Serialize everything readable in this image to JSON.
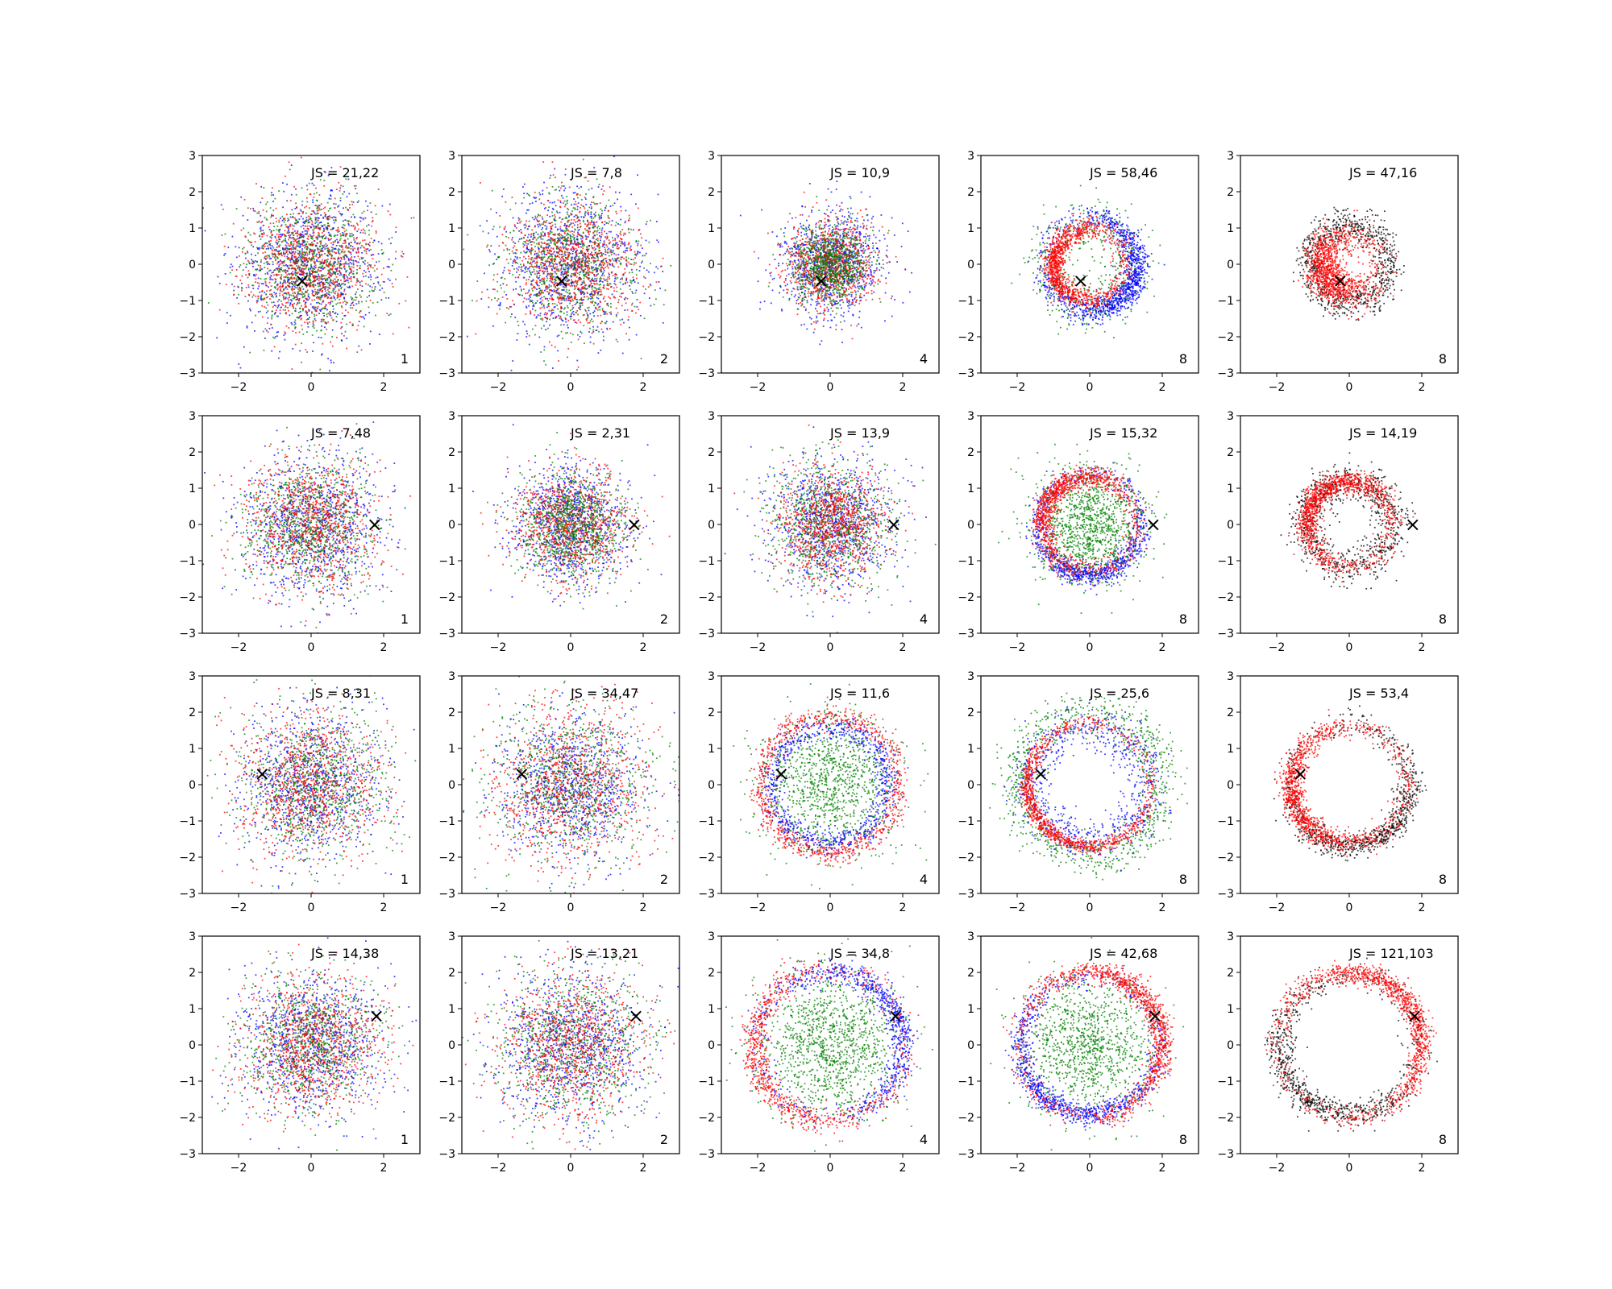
{
  "figure": {
    "rows": 4,
    "cols": 5,
    "xlim": [
      -3,
      3
    ],
    "ylim": [
      -3,
      3
    ],
    "xticks": [
      -2,
      0,
      2
    ],
    "yticks": [
      -3,
      -2,
      -1,
      0,
      1,
      2,
      3
    ],
    "marker_symbol": "×",
    "colors": {
      "blue": "#0000ff",
      "green": "#008000",
      "red": "#ff0000",
      "black": "#000000",
      "axes": "#000000",
      "background": "#ffffff"
    }
  },
  "chart_data": [
    {
      "type": "scatter",
      "row": 0,
      "col": 0,
      "annotation": "JS = 21,22",
      "corner_label": "1",
      "marker": [
        -0.25,
        -0.45
      ],
      "pattern": "blob",
      "series": [
        {
          "color": "blue",
          "spread": 1.05,
          "weight": 1
        },
        {
          "color": "green",
          "spread": 0.95,
          "weight": 1
        },
        {
          "color": "red",
          "spread": 0.95,
          "weight": 1
        }
      ]
    },
    {
      "type": "scatter",
      "row": 0,
      "col": 1,
      "annotation": "JS = 7,8",
      "corner_label": "2",
      "marker": [
        -0.25,
        -0.45
      ],
      "pattern": "blob",
      "series": [
        {
          "color": "blue",
          "spread": 1.05,
          "weight": 1
        },
        {
          "color": "green",
          "spread": 1.0,
          "weight": 1
        },
        {
          "color": "red",
          "spread": 0.95,
          "weight": 1
        }
      ]
    },
    {
      "type": "scatter",
      "row": 0,
      "col": 2,
      "annotation": "JS = 10,9",
      "corner_label": "4",
      "marker": [
        -0.25,
        -0.45
      ],
      "pattern": "blob",
      "series": [
        {
          "color": "blue",
          "spread": 0.8,
          "weight": 1
        },
        {
          "color": "red",
          "spread": 0.65,
          "weight": 1
        },
        {
          "color": "green",
          "spread": 0.55,
          "weight": 1
        }
      ]
    },
    {
      "type": "scatter",
      "row": 0,
      "col": 3,
      "annotation": "JS = 58,46",
      "corner_label": "8",
      "marker": [
        -0.25,
        -0.45
      ],
      "pattern": "ring",
      "series": [
        {
          "color": "green",
          "radius": 1.2,
          "width": 0.75,
          "weight": 0.6
        },
        {
          "color": "blue",
          "radius": 1.3,
          "width": 0.35,
          "weight": 1.2,
          "focus_angle": 330
        },
        {
          "color": "red",
          "radius": 1.0,
          "width": 0.3,
          "weight": 1.2,
          "focus_angle": 180
        }
      ]
    },
    {
      "type": "scatter",
      "row": 0,
      "col": 4,
      "annotation": "JS = 47,16",
      "corner_label": "8",
      "marker": [
        -0.25,
        -0.45
      ],
      "pattern": "ring",
      "series": [
        {
          "color": "black",
          "radius": 1.1,
          "width": 0.45,
          "weight": 0.9
        },
        {
          "color": "red",
          "radius": 0.8,
          "width": 0.5,
          "weight": 1.3,
          "focus_angle": 200
        }
      ]
    },
    {
      "type": "scatter",
      "row": 1,
      "col": 0,
      "annotation": "JS = 7,48",
      "corner_label": "1",
      "marker": [
        1.75,
        0.0
      ],
      "pattern": "blob",
      "series": [
        {
          "color": "blue",
          "spread": 1.05,
          "weight": 1
        },
        {
          "color": "green",
          "spread": 0.95,
          "weight": 1
        },
        {
          "color": "red",
          "spread": 0.95,
          "weight": 1
        }
      ]
    },
    {
      "type": "scatter",
      "row": 1,
      "col": 1,
      "annotation": "JS = 2,31",
      "corner_label": "2",
      "marker": [
        1.75,
        0.0
      ],
      "pattern": "blob",
      "series": [
        {
          "color": "blue",
          "spread": 0.85,
          "weight": 1
        },
        {
          "color": "red",
          "spread": 0.8,
          "weight": 1
        },
        {
          "color": "green",
          "spread": 0.75,
          "weight": 1
        }
      ]
    },
    {
      "type": "scatter",
      "row": 1,
      "col": 2,
      "annotation": "JS = 13,9",
      "corner_label": "4",
      "marker": [
        1.75,
        0.0
      ],
      "pattern": "blob",
      "series": [
        {
          "color": "blue",
          "spread": 0.9,
          "weight": 1
        },
        {
          "color": "green",
          "spread": 0.9,
          "weight": 1
        },
        {
          "color": "red",
          "spread": 0.8,
          "weight": 1
        }
      ]
    },
    {
      "type": "scatter",
      "row": 1,
      "col": 3,
      "annotation": "JS = 15,32",
      "corner_label": "8",
      "marker": [
        1.75,
        0.0
      ],
      "pattern": "ring",
      "series": [
        {
          "color": "blue",
          "radius": 1.4,
          "width": 0.3,
          "weight": 1.0,
          "focus_angle": 270
        },
        {
          "color": "green",
          "radius": 0.0,
          "width": 0.8,
          "weight": 1.2
        },
        {
          "color": "red",
          "radius": 1.3,
          "width": 0.3,
          "weight": 1.2,
          "focus_angle": 135
        }
      ]
    },
    {
      "type": "scatter",
      "row": 1,
      "col": 4,
      "annotation": "JS = 14,19",
      "corner_label": "8",
      "marker": [
        1.75,
        0.0
      ],
      "pattern": "ring",
      "series": [
        {
          "color": "black",
          "radius": 1.2,
          "width": 0.5,
          "weight": 0.9
        },
        {
          "color": "red",
          "radius": 1.2,
          "width": 0.3,
          "weight": 1.3,
          "focus_angle": 130
        }
      ]
    },
    {
      "type": "scatter",
      "row": 2,
      "col": 0,
      "annotation": "JS = 8,31",
      "corner_label": "1",
      "marker": [
        -1.35,
        0.3
      ],
      "pattern": "blob",
      "series": [
        {
          "color": "blue",
          "spread": 1.05,
          "weight": 1
        },
        {
          "color": "green",
          "spread": 1.05,
          "weight": 1
        },
        {
          "color": "red",
          "spread": 1.05,
          "weight": 1
        }
      ]
    },
    {
      "type": "scatter",
      "row": 2,
      "col": 1,
      "annotation": "JS = 34,47",
      "corner_label": "2",
      "marker": [
        -1.35,
        0.3
      ],
      "pattern": "blob",
      "series": [
        {
          "color": "blue",
          "spread": 1.0,
          "weight": 1
        },
        {
          "color": "green",
          "spread": 1.15,
          "weight": 1
        },
        {
          "color": "red",
          "spread": 1.15,
          "weight": 1
        }
      ]
    },
    {
      "type": "scatter",
      "row": 2,
      "col": 2,
      "annotation": "JS = 11,6",
      "corner_label": "4",
      "marker": [
        -1.35,
        0.3
      ],
      "pattern": "ring",
      "series": [
        {
          "color": "green",
          "radius": 0.0,
          "width": 1.0,
          "weight": 1.2
        },
        {
          "color": "blue",
          "radius": 1.6,
          "width": 0.35,
          "weight": 0.9
        },
        {
          "color": "red",
          "radius": 1.9,
          "width": 0.3,
          "weight": 0.9
        }
      ]
    },
    {
      "type": "scatter",
      "row": 2,
      "col": 3,
      "annotation": "JS = 25,6",
      "corner_label": "8",
      "marker": [
        -1.35,
        0.3
      ],
      "pattern": "ring",
      "series": [
        {
          "color": "green",
          "radius": 2.0,
          "width": 0.6,
          "weight": 1.0
        },
        {
          "color": "blue",
          "radius": 1.6,
          "width": 0.6,
          "weight": 0.8
        },
        {
          "color": "red",
          "radius": 1.7,
          "width": 0.2,
          "weight": 1.1,
          "focus_angle": 220
        }
      ]
    },
    {
      "type": "scatter",
      "row": 2,
      "col": 4,
      "annotation": "JS = 53,4",
      "corner_label": "8",
      "marker": [
        -1.35,
        0.3
      ],
      "pattern": "ring",
      "series": [
        {
          "color": "black",
          "radius": 1.7,
          "width": 0.35,
          "weight": 0.9,
          "focus_angle": 300
        },
        {
          "color": "red",
          "radius": 1.6,
          "width": 0.3,
          "weight": 1.3,
          "focus_angle": 200
        }
      ]
    },
    {
      "type": "scatter",
      "row": 3,
      "col": 0,
      "annotation": "JS = 14,38",
      "corner_label": "1",
      "marker": [
        1.8,
        0.8
      ],
      "pattern": "blob",
      "series": [
        {
          "color": "blue",
          "spread": 1.05,
          "weight": 1
        },
        {
          "color": "green",
          "spread": 1.0,
          "weight": 1
        },
        {
          "color": "red",
          "spread": 1.0,
          "weight": 1
        }
      ]
    },
    {
      "type": "scatter",
      "row": 3,
      "col": 1,
      "annotation": "JS = 13,21",
      "corner_label": "2",
      "marker": [
        1.8,
        0.8
      ],
      "pattern": "blob",
      "series": [
        {
          "color": "blue",
          "spread": 1.1,
          "weight": 1
        },
        {
          "color": "green",
          "spread": 1.1,
          "weight": 1
        },
        {
          "color": "red",
          "spread": 1.1,
          "weight": 1
        }
      ]
    },
    {
      "type": "scatter",
      "row": 3,
      "col": 2,
      "annotation": "JS = 34,8",
      "corner_label": "4",
      "marker": [
        1.8,
        0.8
      ],
      "pattern": "ring",
      "series": [
        {
          "color": "green",
          "radius": 0.0,
          "width": 1.05,
          "weight": 1.3
        },
        {
          "color": "blue",
          "radius": 2.0,
          "width": 0.35,
          "weight": 0.9,
          "focus_angle": 30
        },
        {
          "color": "red",
          "radius": 2.1,
          "width": 0.35,
          "weight": 0.9,
          "focus_angle": 200
        }
      ]
    },
    {
      "type": "scatter",
      "row": 3,
      "col": 3,
      "annotation": "JS = 42,68",
      "corner_label": "8",
      "marker": [
        1.8,
        0.8
      ],
      "pattern": "ring",
      "series": [
        {
          "color": "green",
          "radius": 0.0,
          "width": 1.0,
          "weight": 1.2
        },
        {
          "color": "blue",
          "radius": 1.9,
          "width": 0.3,
          "weight": 1.0,
          "focus_angle": 240
        },
        {
          "color": "red",
          "radius": 2.0,
          "width": 0.3,
          "weight": 1.3,
          "focus_angle": 30
        }
      ]
    },
    {
      "type": "scatter",
      "row": 3,
      "col": 4,
      "annotation": "JS = 121,103",
      "corner_label": "8",
      "marker": [
        1.8,
        0.8
      ],
      "pattern": "ring",
      "series": [
        {
          "color": "black",
          "radius": 1.9,
          "width": 0.4,
          "weight": 0.9,
          "focus_angle": 230
        },
        {
          "color": "red",
          "radius": 2.0,
          "width": 0.3,
          "weight": 1.3,
          "focus_angle": 40
        }
      ]
    }
  ]
}
